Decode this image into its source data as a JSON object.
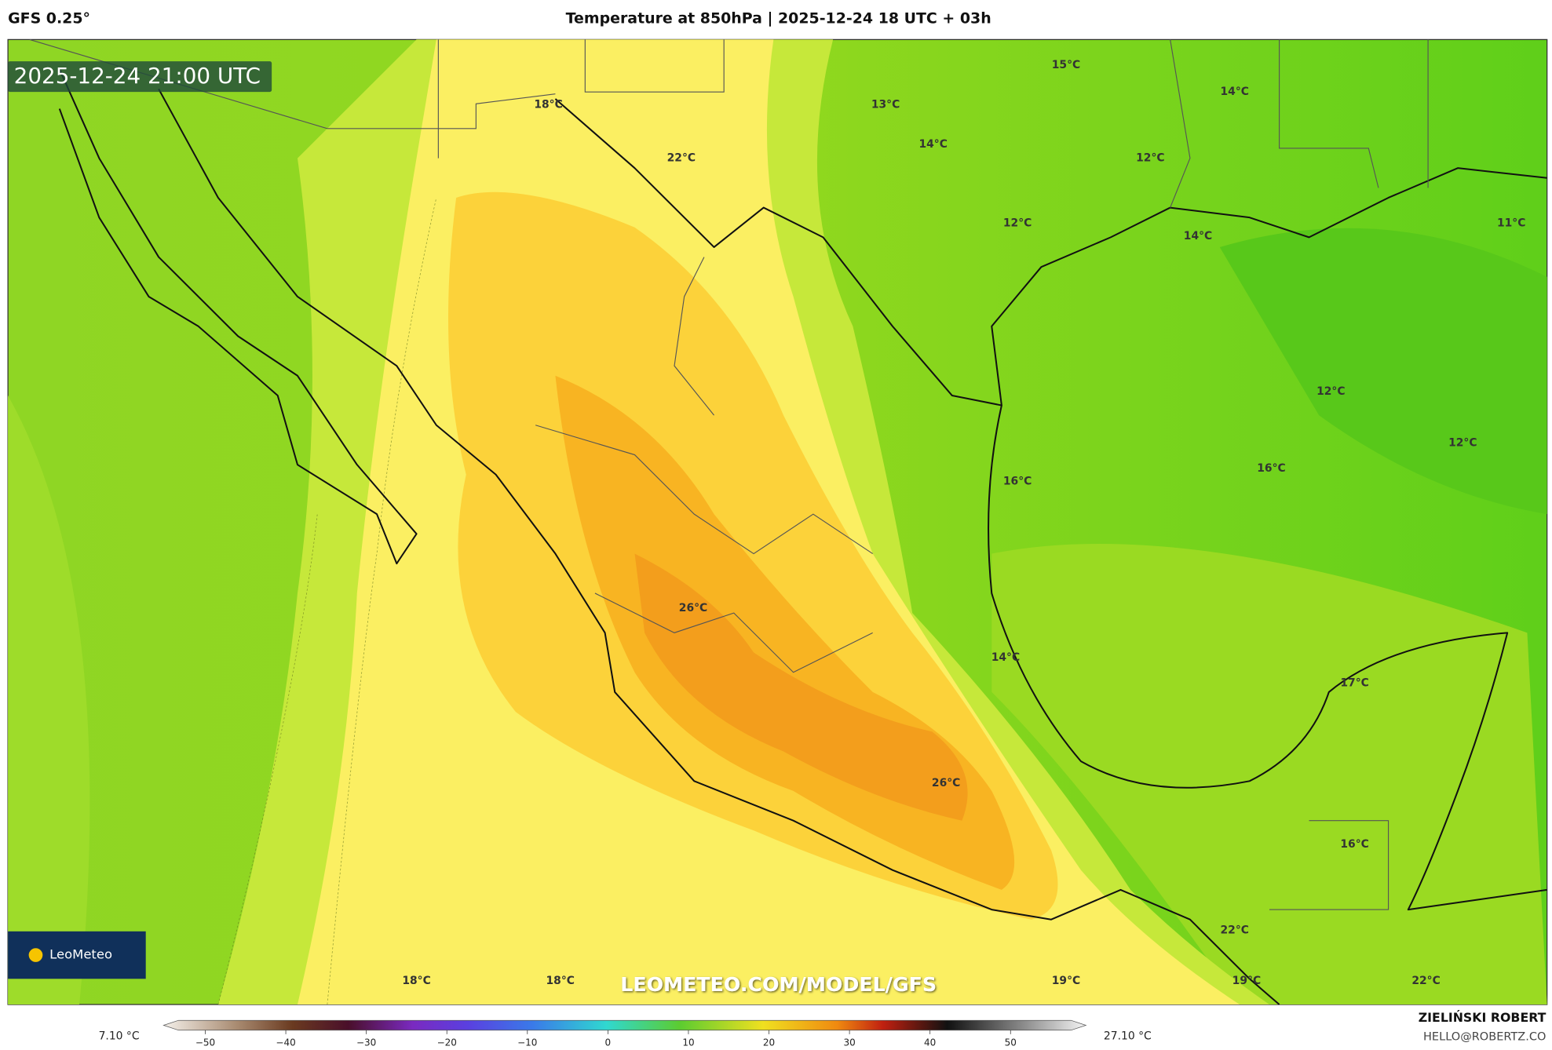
{
  "header": {
    "model": "GFS 0.25°",
    "title": "Temperature at 850hPa | 2025-12-24 18 UTC + 03h"
  },
  "map": {
    "timestamp": "2025-12-24 21:00 UTC",
    "watermark": "LEOMETEO.COM/MODEL/GFS",
    "logo": "LeoMeteo",
    "labels": [
      "15°C",
      "14°C",
      "18°C",
      "13°C",
      "22°C",
      "14°C",
      "12°C",
      "12°C",
      "14°C",
      "11°C",
      "12°C",
      "12°C",
      "16°C",
      "16°C",
      "26°C",
      "14°C",
      "17°C",
      "26°C",
      "16°C",
      "22°C",
      "18°C",
      "18°C",
      "19°C",
      "19°C",
      "22°C"
    ]
  },
  "colorbar": {
    "min": "7.10 °C",
    "max": "27.10 °C",
    "ticks": [
      "−50",
      "−40",
      "−30",
      "−20",
      "−10",
      "0",
      "10",
      "20",
      "30",
      "40",
      "50"
    ]
  },
  "footer": {
    "author": "ZIELIŃSKI ROBERT",
    "email": "HELLO@ROBERTZ.CO"
  }
}
